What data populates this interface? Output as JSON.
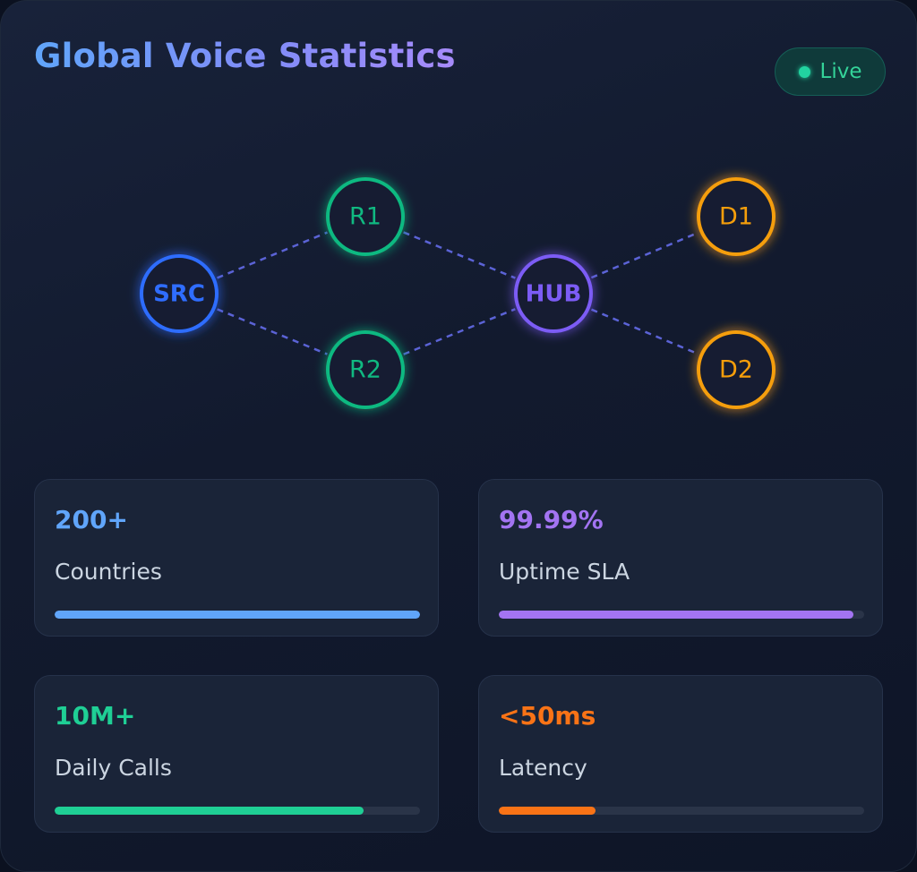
{
  "header": {
    "title": "Global Voice Statistics",
    "status_label": "Live",
    "status_color": "#22d3a0"
  },
  "network": {
    "nodes": [
      {
        "id": "SRC",
        "label": "SRC",
        "color": "#2f6dff",
        "kind": "source"
      },
      {
        "id": "R1",
        "label": "R1",
        "color": "#10b981",
        "kind": "relay"
      },
      {
        "id": "R2",
        "label": "R2",
        "color": "#10b981",
        "kind": "relay"
      },
      {
        "id": "HUB",
        "label": "HUB",
        "color": "#7c5cf5",
        "kind": "hub"
      },
      {
        "id": "D1",
        "label": "D1",
        "color": "#f59e0b",
        "kind": "destination"
      },
      {
        "id": "D2",
        "label": "D2",
        "color": "#f59e0b",
        "kind": "destination"
      }
    ],
    "links": [
      [
        "SRC",
        "R1"
      ],
      [
        "SRC",
        "R2"
      ],
      [
        "R1",
        "HUB"
      ],
      [
        "R2",
        "HUB"
      ],
      [
        "HUB",
        "D1"
      ],
      [
        "HUB",
        "D2"
      ]
    ],
    "link_color": "#5b63d6"
  },
  "stats": [
    {
      "value": "200+",
      "label": "Countries",
      "color": "#60a5fa",
      "bar_fraction": 1.0
    },
    {
      "value": "99.99%",
      "label": "Uptime SLA",
      "color": "#a374f2",
      "bar_fraction": 0.97
    },
    {
      "value": "10M+",
      "label": "Daily Calls",
      "color": "#1fcf95",
      "bar_fraction": 0.845
    },
    {
      "value": "<50ms",
      "label": "Latency",
      "color": "#f97316",
      "bar_fraction": 0.265
    }
  ]
}
